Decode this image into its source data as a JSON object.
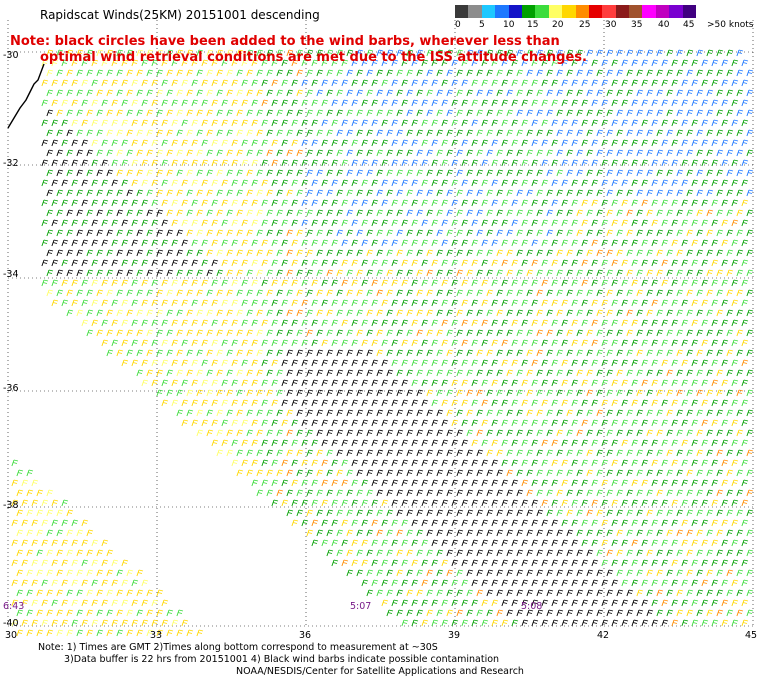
{
  "title": "Rapidscat Winds(25KM) 20151001 descending",
  "note": {
    "line1": "Note: black circles have been added to the wind barbs, wherever less than",
    "line2": "optimal wind retrieval conditions are met due to the ISS attitude changes."
  },
  "scale": {
    "colors": [
      "#3a3a3a",
      "#8c8c8c",
      "#1ec8ff",
      "#1e78ff",
      "#1414c8",
      "#00a000",
      "#3cdc3c",
      "#ffff64",
      "#ffd700",
      "#ff8c00",
      "#e60000",
      "#ff3c3c",
      "#8b1a1a",
      "#a0522d",
      "#ff00ff",
      "#c000c0",
      "#7a00d0",
      "#400080"
    ],
    "labels": [
      "0",
      "5",
      "10",
      "15",
      "20",
      "25",
      "30",
      "35",
      "40",
      "45",
      ">50 knots"
    ]
  },
  "y_labels": [
    "-30",
    "-32",
    "-34",
    "-36",
    "-38",
    "-40"
  ],
  "x_labels": [
    "30",
    "33",
    "36",
    "39",
    "42",
    "45"
  ],
  "time_labels": [
    "6:43",
    "5:07",
    "5:08"
  ],
  "footer": {
    "line1": "Note: 1) Times are GMT 2)Times along bottom correspond to measurement at ~30S",
    "line2": "3)Data buffer is 22 hrs from 20151001 4) Black wind barbs indicate possible contamination"
  },
  "credit": "NOAA/NESDIS/Center for Satellite Applications and Research"
}
